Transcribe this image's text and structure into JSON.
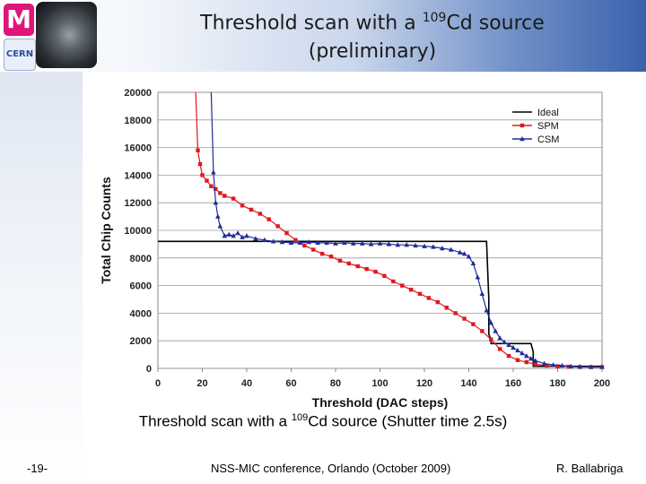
{
  "slide": {
    "title_pre": "Threshold scan with a ",
    "title_sup": "109",
    "title_post": "Cd source",
    "title_line2": "(preliminary)",
    "caption_pre": "Threshold scan with a ",
    "caption_sup": "109",
    "caption_post": "Cd source (Shutter time 2.5s)",
    "page_number": "-19-",
    "conference": "NSS-MIC conference, Orlando (October 2009)",
    "author": "R. Ballabriga"
  },
  "chart_data": {
    "type": "line",
    "xlabel": "Threshold (DAC steps)",
    "ylabel": "Total Chip Counts",
    "xlim": [
      0,
      200
    ],
    "ylim": [
      0,
      20000
    ],
    "xticks": [
      0,
      20,
      40,
      60,
      80,
      100,
      120,
      140,
      160,
      180,
      200
    ],
    "yticks": [
      0,
      2000,
      4000,
      6000,
      8000,
      10000,
      12000,
      14000,
      16000,
      18000,
      20000
    ],
    "grid": "horizontal",
    "legend_position": "top-right",
    "series": [
      {
        "name": "Ideal",
        "color": "#000000",
        "marker": "none",
        "x": [
          0,
          148,
          149,
          149,
          150,
          150,
          168,
          169,
          169,
          200
        ],
        "y": [
          9200,
          9200,
          5000,
          2500,
          2000,
          1800,
          1800,
          1200,
          150,
          150
        ]
      },
      {
        "name": "SPM",
        "color": "#e0181c",
        "marker": "square",
        "x": [
          17,
          18,
          19,
          20,
          22,
          24,
          26,
          28,
          30,
          34,
          38,
          42,
          46,
          50,
          54,
          58,
          62,
          66,
          70,
          74,
          78,
          82,
          86,
          90,
          94,
          98,
          102,
          106,
          110,
          114,
          118,
          122,
          126,
          130,
          134,
          138,
          142,
          146,
          150,
          154,
          158,
          162,
          166,
          170,
          175,
          180,
          185,
          190,
          195,
          200
        ],
        "y": [
          20000,
          15800,
          14800,
          14000,
          13600,
          13200,
          13000,
          12700,
          12500,
          12300,
          11800,
          11500,
          11200,
          10800,
          10300,
          9800,
          9300,
          8900,
          8600,
          8300,
          8100,
          7800,
          7600,
          7400,
          7200,
          7000,
          6700,
          6300,
          6000,
          5700,
          5400,
          5100,
          4800,
          4400,
          4000,
          3600,
          3200,
          2700,
          2100,
          1400,
          900,
          600,
          450,
          300,
          200,
          150,
          120,
          100,
          100,
          100
        ]
      },
      {
        "name": "CSM",
        "color": "#1f2c97",
        "marker": "triangle",
        "x": [
          24,
          25,
          26,
          27,
          28,
          30,
          32,
          34,
          36,
          38,
          40,
          44,
          48,
          52,
          56,
          60,
          64,
          68,
          72,
          76,
          80,
          84,
          88,
          92,
          96,
          100,
          104,
          108,
          112,
          116,
          120,
          124,
          128,
          132,
          136,
          138,
          140,
          142,
          144,
          146,
          148,
          150,
          152,
          154,
          156,
          158,
          160,
          162,
          164,
          166,
          168,
          170,
          174,
          178,
          182,
          186,
          190,
          195,
          200
        ],
        "y": [
          20000,
          14200,
          12000,
          11000,
          10300,
          9600,
          9700,
          9600,
          9800,
          9500,
          9600,
          9400,
          9300,
          9200,
          9150,
          9100,
          9100,
          9150,
          9100,
          9100,
          9050,
          9100,
          9050,
          9050,
          9000,
          9050,
          9000,
          8950,
          8950,
          8900,
          8850,
          8800,
          8700,
          8600,
          8400,
          8300,
          8100,
          7600,
          6600,
          5400,
          4200,
          3300,
          2700,
          2200,
          1900,
          1700,
          1500,
          1300,
          1100,
          900,
          700,
          550,
          350,
          250,
          200,
          150,
          120,
          100,
          100
        ]
      }
    ]
  }
}
